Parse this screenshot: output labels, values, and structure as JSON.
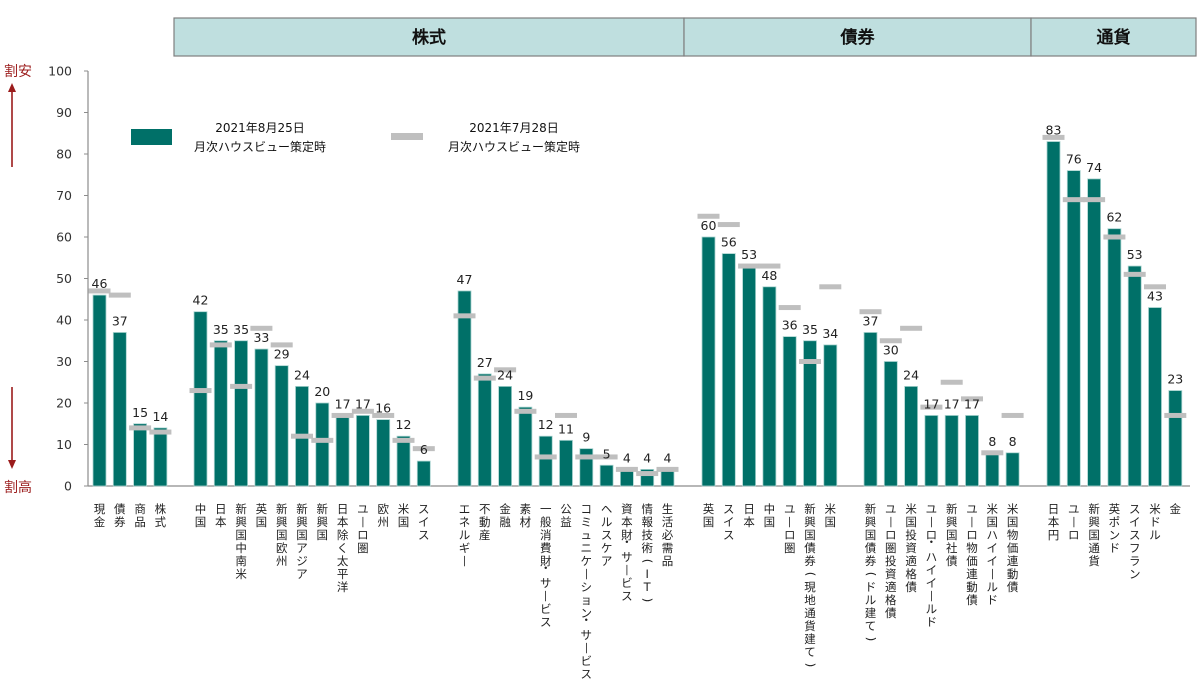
{
  "chart_data": {
    "type": "bar",
    "title": "",
    "xlabel": "",
    "ylabel": "",
    "ylim": [
      0,
      100
    ],
    "yticks": [
      0,
      10,
      20,
      30,
      40,
      50,
      60,
      70,
      80,
      90,
      100
    ],
    "grid": false,
    "y_direction_labels": {
      "top": "割安",
      "bottom": "割高"
    },
    "section_headers": [
      {
        "label": "株式",
        "groups": [
          "equity_regions",
          "equity_sectors"
        ]
      },
      {
        "label": "債券",
        "groups": [
          "bond_sovereign",
          "bond_credit"
        ]
      },
      {
        "label": "通貨",
        "groups": [
          "currency"
        ]
      }
    ],
    "legend": {
      "placement": "top-left",
      "entries": [
        {
          "name": "2021年8月25日\n月次ハウスビュー策定時",
          "line1": "2021年8月25日",
          "line2": "月次ハウスビュー策定時",
          "style": "bar",
          "color": "#007068"
        },
        {
          "name": "2021年7月28日\n月次ハウスビュー策定時",
          "line1": "2021年7月28日",
          "line2": "月次ハウスビュー策定時",
          "style": "marker",
          "color": "#bfbfbf"
        }
      ]
    },
    "series": [
      {
        "name": "2021年8月25日 月次ハウスビュー策定時",
        "color": "#007068"
      },
      {
        "name": "2021年7月28日 月次ハウスビュー策定時",
        "color": "#bfbfbf"
      }
    ],
    "groups": [
      {
        "id": "assets",
        "categories": [
          "現金",
          "債券",
          "商品",
          "株式"
        ],
        "current": [
          46,
          37,
          15,
          14
        ],
        "previous": [
          47,
          46,
          14,
          13
        ]
      },
      {
        "id": "equity_regions",
        "categories": [
          "中国",
          "日本",
          "新興国中南米",
          "英国",
          "新興国欧州",
          "新興国アジア",
          "新興国",
          "日本除く太平洋",
          "ユーロ圏",
          "欧州",
          "米国",
          "スイス"
        ],
        "current": [
          42,
          35,
          35,
          33,
          29,
          24,
          20,
          17,
          17,
          16,
          12,
          6
        ],
        "previous": [
          23,
          34,
          24,
          38,
          34,
          12,
          11,
          17,
          18,
          17,
          11,
          9
        ]
      },
      {
        "id": "equity_sectors",
        "categories": [
          "エネルギー",
          "不動産",
          "金融",
          "素材",
          "一般消費財・サービス",
          "公益",
          "コミュニケーション・サービス",
          "ヘルスケア",
          "資本財・サービス",
          "情報技術(IT)",
          "生活必需品"
        ],
        "current": [
          47,
          27,
          24,
          19,
          12,
          11,
          9,
          5,
          4,
          4,
          4
        ],
        "previous": [
          41,
          26,
          28,
          18,
          7,
          17,
          7,
          7,
          4,
          3,
          4
        ]
      },
      {
        "id": "bond_sovereign",
        "categories": [
          "英国",
          "スイス",
          "日本",
          "中国",
          "ユーロ圏",
          "新興国債券(現地通貨建て)",
          "米国"
        ],
        "current": [
          60,
          56,
          53,
          48,
          36,
          35,
          34
        ],
        "previous": [
          65,
          63,
          53,
          53,
          43,
          30,
          48
        ]
      },
      {
        "id": "bond_credit",
        "categories": [
          "新興国債券(ドル建て)",
          "ユーロ圏投資適格債",
          "米国投資適格債",
          "ユーロ・ハイイールド",
          "新興国社債",
          "ユーロ物価連動債",
          "米国ハイイールド",
          "米国物価連動債"
        ],
        "current": [
          37,
          30,
          24,
          17,
          17,
          17,
          8,
          8
        ],
        "previous": [
          42,
          35,
          38,
          19,
          25,
          21,
          8,
          17
        ]
      },
      {
        "id": "currency",
        "categories": [
          "日本円",
          "ユーロ",
          "新興国通貨",
          "英ポンド",
          "スイスフラン",
          "米ドル",
          "金"
        ],
        "current": [
          83,
          76,
          74,
          62,
          53,
          43,
          23
        ],
        "previous": [
          84,
          69,
          69,
          60,
          51,
          48,
          17
        ]
      }
    ]
  },
  "colors": {
    "bar": "#007068",
    "bar_edge": "#a9d3cf",
    "marker": "#bfbfbf",
    "header_fill": "#bfdfdf",
    "header_border": "#7f7f7f",
    "axis": "#8c8c8c",
    "arrow": "#9b1c1c"
  }
}
